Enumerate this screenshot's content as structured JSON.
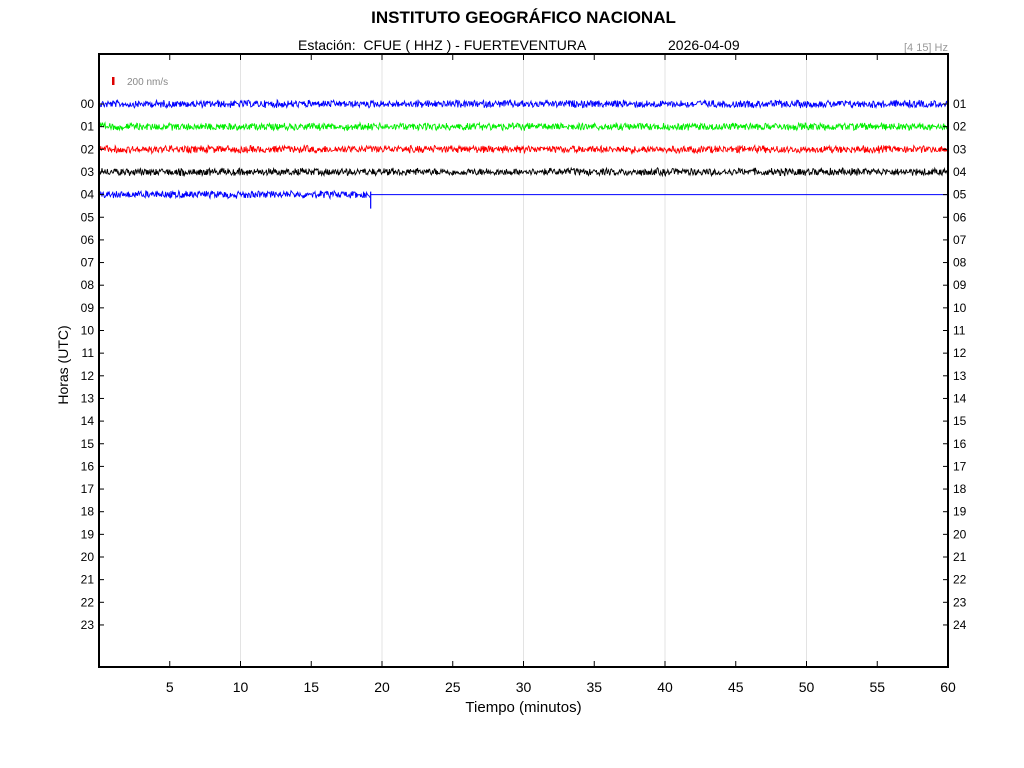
{
  "header": {
    "title": "INSTITUTO GEOGRÁFICO NACIONAL",
    "station_label": "Estación:",
    "station": "CFUE ( HHZ ) - FUERTEVENTURA",
    "date": "2026-04-09",
    "filter": "[4 15] Hz"
  },
  "chart_data": {
    "type": "line",
    "title": "INSTITUTO GEOGRÁFICO NACIONAL",
    "xlabel": "Tiempo (minutos)",
    "ylabel": "Horas (UTC)",
    "xlim": [
      0,
      60
    ],
    "x_ticks": [
      5,
      10,
      15,
      20,
      25,
      30,
      35,
      40,
      45,
      50,
      55,
      60
    ],
    "left_tick_labels": [
      "00",
      "01",
      "02",
      "03",
      "04",
      "05",
      "06",
      "07",
      "08",
      "09",
      "10",
      "11",
      "12",
      "13",
      "14",
      "15",
      "16",
      "17",
      "18",
      "19",
      "20",
      "21",
      "22",
      "23"
    ],
    "right_tick_labels": [
      "01",
      "02",
      "03",
      "04",
      "05",
      "06",
      "07",
      "08",
      "09",
      "10",
      "11",
      "12",
      "13",
      "14",
      "15",
      "16",
      "17",
      "18",
      "19",
      "20",
      "21",
      "22",
      "23",
      "24"
    ],
    "scale_bar_label": "200 nm/s",
    "scale_bar_color": "#dd0000",
    "grid": true,
    "traces": [
      {
        "hour": "00",
        "color": "#0000ff",
        "start_min": 0,
        "end_min": 60
      },
      {
        "hour": "01",
        "color": "#00ee00",
        "start_min": 0,
        "end_min": 60
      },
      {
        "hour": "02",
        "color": "#ff0000",
        "start_min": 0,
        "end_min": 60
      },
      {
        "hour": "03",
        "color": "#000000",
        "start_min": 0,
        "end_min": 60
      },
      {
        "hour": "04",
        "color": "#0000ff",
        "start_min": 0,
        "end_min": 19.2
      }
    ]
  }
}
